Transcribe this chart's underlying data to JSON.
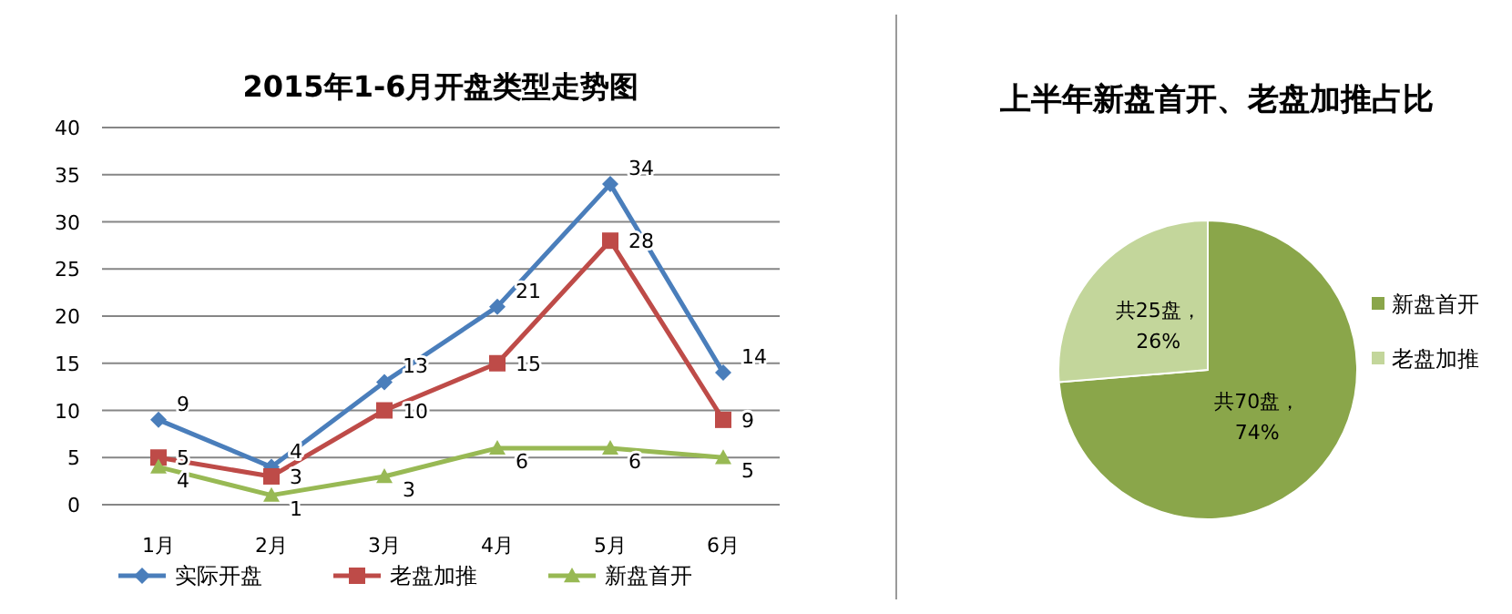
{
  "chart_data": [
    {
      "type": "line",
      "title": "2015年1-6月开盘类型走势图",
      "categories": [
        "1月",
        "2月",
        "3月",
        "4月",
        "5月",
        "6月"
      ],
      "series": [
        {
          "name": "实际开盘",
          "color": "#4a7ebb",
          "marker": "diamond",
          "values": [
            9,
            4,
            13,
            21,
            34,
            14
          ]
        },
        {
          "name": "老盘加推",
          "color": "#be4b48",
          "marker": "square",
          "values": [
            5,
            3,
            10,
            15,
            28,
            9
          ]
        },
        {
          "name": "新盘首开",
          "color": "#98b954",
          "marker": "triangle",
          "values": [
            4,
            1,
            3,
            6,
            6,
            5
          ]
        }
      ],
      "ylim": [
        0,
        40
      ],
      "yticks": [
        0,
        5,
        10,
        15,
        20,
        25,
        30,
        35,
        40
      ],
      "grid": "y",
      "legend": "bottom",
      "data_labels": true
    },
    {
      "type": "pie",
      "title": "上半年新盘首开、老盘加推占比",
      "categories": [
        "新盘首开",
        "老盘加推"
      ],
      "values": [
        70,
        25
      ],
      "colors": [
        "#8aa64a",
        "#c3d69b"
      ],
      "value_labels": [
        "共70盘，74%",
        "共25盘，26%"
      ],
      "legend": "right"
    }
  ]
}
